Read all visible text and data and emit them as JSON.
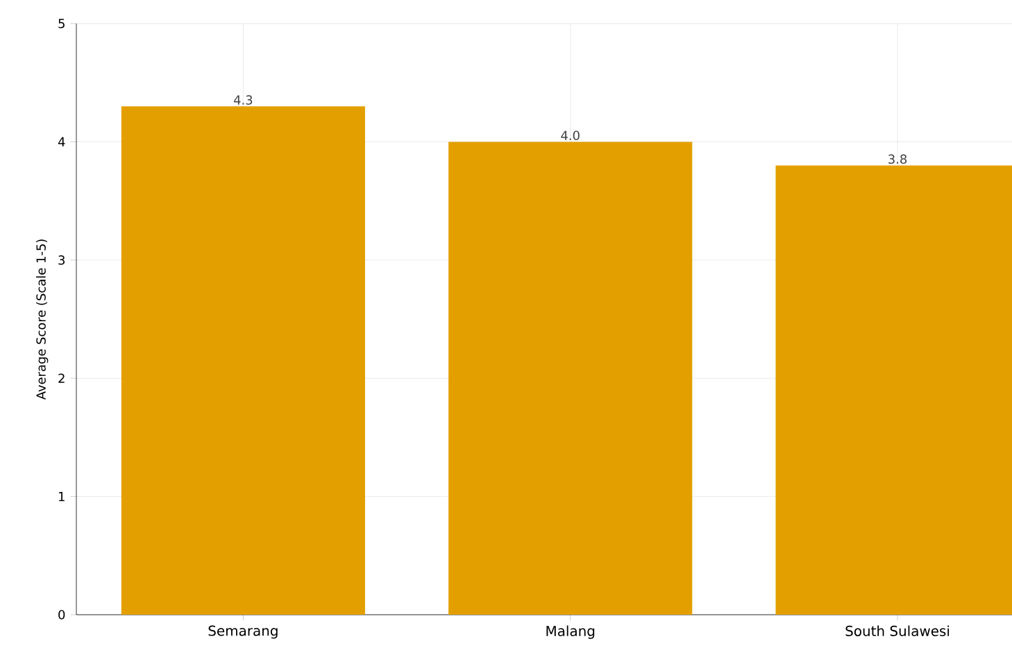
{
  "chart_data": {
    "type": "bar",
    "ylabel": "Average Score (Scale 1-5)",
    "categories": [
      "Semarang",
      "Malang",
      "South Sulawesi"
    ],
    "values": [
      4.3,
      4.0,
      3.8
    ],
    "value_labels": [
      "4.3",
      "4.0",
      "3.8"
    ],
    "color": "#e39f00",
    "ylim": [
      0,
      5
    ],
    "yticks": [
      0,
      1,
      2,
      3,
      4,
      5
    ],
    "grid": true
  }
}
